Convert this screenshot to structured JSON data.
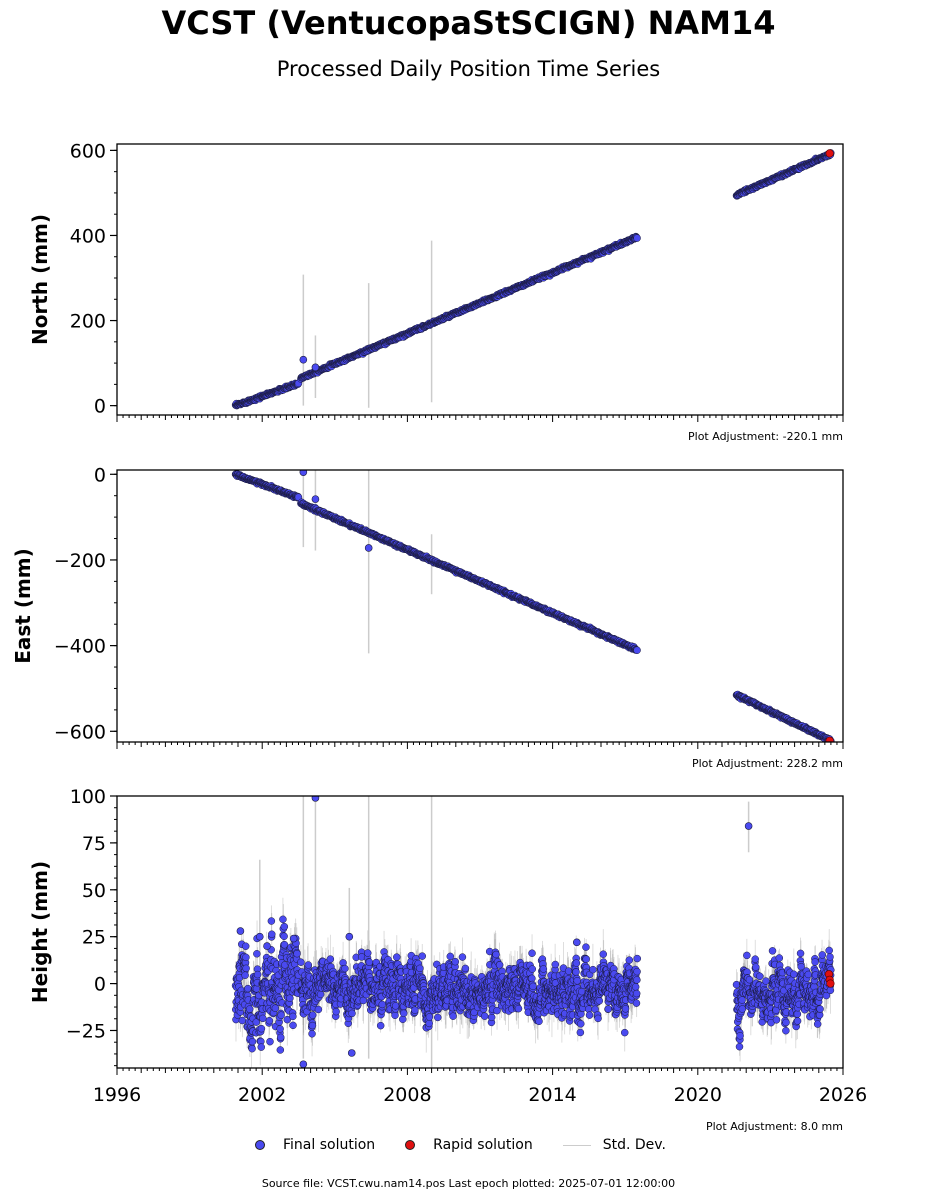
{
  "title": "VCST (VentucopaStSCIGN) NAM14",
  "subtitle": "Processed Daily Position Time Series",
  "footer": "Source file: VCST.cwu.nam14.pos  Last epoch plotted: 2025-07-01 12:00:00",
  "legend": {
    "final": "Final solution",
    "rapid": "Rapid solution",
    "stddev": "Std. Dev."
  },
  "colors": {
    "final": "#4a4af0",
    "rapid": "#e01010",
    "stddev": "#cccccc",
    "edge": "#1a1a3a"
  },
  "chart_data": [
    {
      "type": "scatter",
      "ylabel": "North (mm)",
      "adjustment": "Plot Adjustment: -220.1 mm",
      "xlim": [
        1996,
        2026
      ],
      "ylim": [
        -22,
        615
      ],
      "yticks": [
        0,
        200,
        400,
        600
      ],
      "ytick_labels": [
        "0",
        "200",
        "400",
        "600"
      ],
      "show_x_labels": false,
      "segments": [
        {
          "x0": 2000.9,
          "x1": 2003.5,
          "y0": 0,
          "y1": 52
        },
        {
          "x0": 2003.6,
          "x1": 2017.5,
          "y0": 65,
          "y1": 396
        },
        {
          "x0": 2021.6,
          "x1": 2025.5,
          "y0": 495,
          "y1": 592
        }
      ],
      "outliers": [
        {
          "x": 2003.7,
          "y": 108
        },
        {
          "x": 2004.2,
          "y": 90
        }
      ],
      "errorbars": [
        {
          "x": 2003.7,
          "lo": 0,
          "hi": 308
        },
        {
          "x": 2004.2,
          "lo": 18,
          "hi": 165
        },
        {
          "x": 2006.4,
          "lo": -5,
          "hi": 288
        },
        {
          "x": 2009.0,
          "lo": 8,
          "hi": 388
        }
      ],
      "rapid_points": [
        {
          "x": 2025.45,
          "y": 593
        }
      ]
    },
    {
      "type": "scatter",
      "ylabel": "East (mm)",
      "adjustment": "Plot Adjustment: 228.2 mm",
      "xlim": [
        1996,
        2026
      ],
      "ylim": [
        -625,
        10
      ],
      "yticks": [
        0,
        -200,
        -400,
        -600
      ],
      "ytick_labels": [
        "0",
        "−200",
        "−400",
        "−600"
      ],
      "show_x_labels": false,
      "segments": [
        {
          "x0": 2000.9,
          "x1": 2003.5,
          "y0": 0,
          "y1": -55
        },
        {
          "x0": 2003.6,
          "x1": 2017.5,
          "y0": -68,
          "y1": -410
        },
        {
          "x0": 2021.6,
          "x1": 2025.5,
          "y0": -515,
          "y1": -622
        }
      ],
      "outliers": [
        {
          "x": 2003.7,
          "y": 5
        },
        {
          "x": 2004.2,
          "y": -58
        },
        {
          "x": 2006.4,
          "y": -172
        }
      ],
      "errorbars": [
        {
          "x": 2003.7,
          "lo": -170,
          "hi": 10
        },
        {
          "x": 2004.2,
          "lo": -178,
          "hi": 10
        },
        {
          "x": 2006.4,
          "lo": -418,
          "hi": 10
        },
        {
          "x": 2009.0,
          "lo": -280,
          "hi": -140
        }
      ],
      "rapid_points": [
        {
          "x": 2025.45,
          "y": -622
        }
      ]
    },
    {
      "type": "scatter",
      "ylabel": "Height (mm)",
      "adjustment": "Plot Adjustment: 8.0 mm",
      "xlim": [
        1996,
        2026
      ],
      "ylim": [
        -45,
        100
      ],
      "yticks": [
        -25,
        0,
        25,
        50,
        75,
        100
      ],
      "ytick_labels": [
        "−25",
        "0",
        "25",
        "50",
        "75",
        "100"
      ],
      "show_x_labels": true,
      "xticks": [
        1996,
        2002,
        2008,
        2014,
        2020,
        2026
      ],
      "xtick_labels": [
        "1996",
        "2002",
        "2008",
        "2014",
        "2020",
        "2026"
      ],
      "segments": [
        {
          "x0": 2000.9,
          "x1": 2003.5,
          "y0": -5,
          "y1": -5,
          "scatter": 14
        },
        {
          "x0": 2003.6,
          "x1": 2017.5,
          "y0": -3,
          "y1": -5,
          "scatter": 9
        },
        {
          "x0": 2021.6,
          "x1": 2025.5,
          "y0": -8,
          "y1": 0,
          "scatter": 9
        }
      ],
      "outliers": [
        {
          "x": 2001.1,
          "y": 28
        },
        {
          "x": 2001.9,
          "y": 25
        },
        {
          "x": 2002.2,
          "y": 20
        },
        {
          "x": 2003.3,
          "y": 24
        },
        {
          "x": 2004.2,
          "y": 99
        },
        {
          "x": 2005.6,
          "y": 25
        },
        {
          "x": 2005.7,
          "y": -37
        },
        {
          "x": 2003.7,
          "y": -43
        },
        {
          "x": 2015.0,
          "y": 22
        },
        {
          "x": 2022.1,
          "y": 84
        }
      ],
      "errorbars": [
        {
          "x": 2003.7,
          "lo": -40,
          "hi": 100
        },
        {
          "x": 2004.2,
          "lo": -25,
          "hi": 100
        },
        {
          "x": 2006.4,
          "lo": -40,
          "hi": 100
        },
        {
          "x": 2009.0,
          "lo": -45,
          "hi": 100
        },
        {
          "x": 2001.9,
          "lo": -20,
          "hi": 66
        },
        {
          "x": 2005.6,
          "lo": -10,
          "hi": 51
        },
        {
          "x": 2022.1,
          "lo": 70,
          "hi": 97
        }
      ],
      "rapid_points": [
        {
          "x": 2025.42,
          "y": 5
        },
        {
          "x": 2025.45,
          "y": 2
        },
        {
          "x": 2025.48,
          "y": 0
        }
      ]
    }
  ]
}
